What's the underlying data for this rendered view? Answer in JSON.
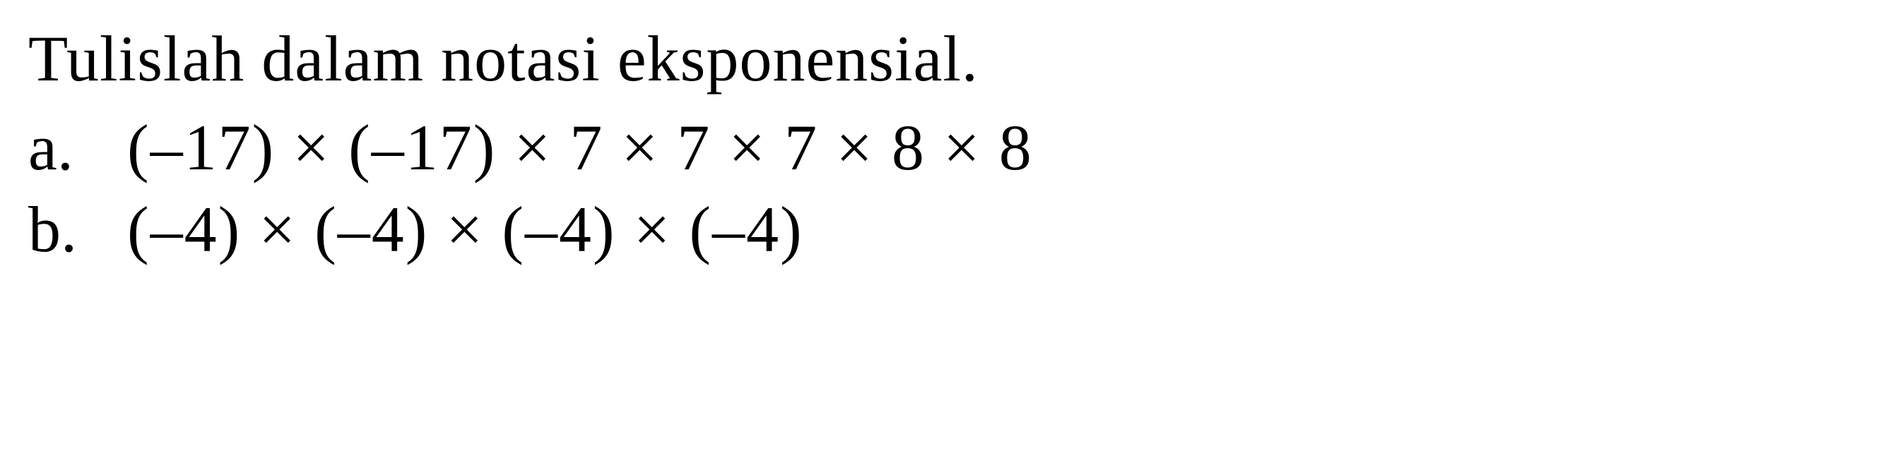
{
  "title": "Tulislah dalam notasi eksponensial.",
  "items": [
    {
      "label": "a.",
      "expression": "(–17) × (–17) × 7 × 7 × 7 × 8 × 8"
    },
    {
      "label": "b.",
      "expression": "(–4) × (–4) × (–4) × (–4)"
    }
  ],
  "styling": {
    "background_color": "#ffffff",
    "text_color": "#000000",
    "font_family": "Times New Roman",
    "title_fontsize": 92,
    "label_fontsize": 92,
    "expression_fontsize": 92,
    "font_weight": 400
  }
}
